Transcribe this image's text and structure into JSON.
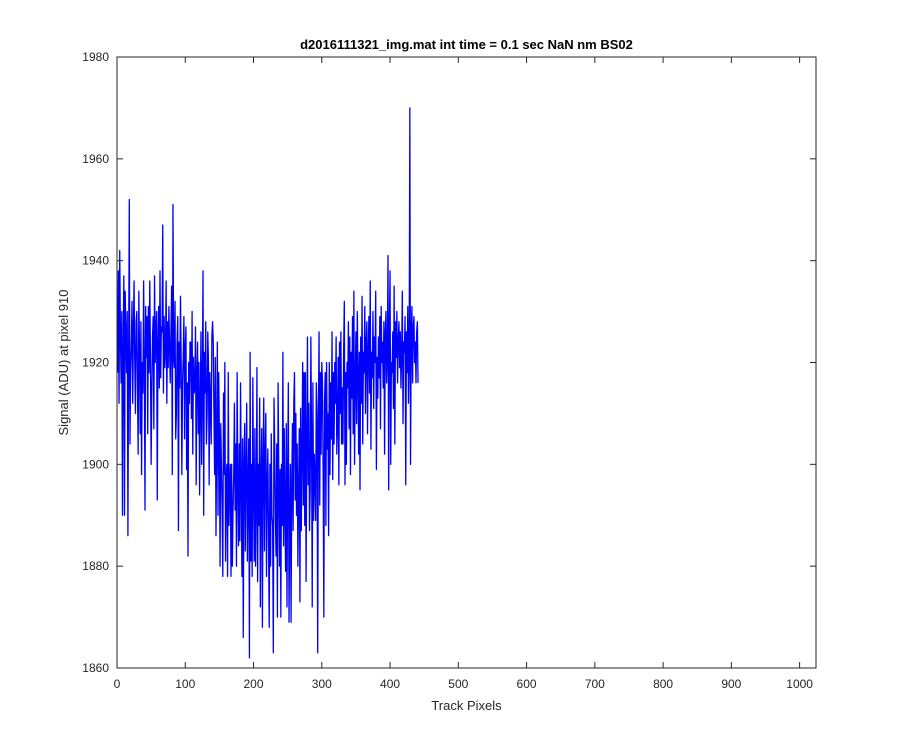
{
  "chart_data": {
    "type": "line",
    "title": "d2016111321_img.mat int time = 0.1 sec  NaN nm BS02",
    "xlabel": "Track Pixels",
    "ylabel": "Signal (ADU) at pixel 910",
    "xlim": [
      0,
      1024
    ],
    "ylim": [
      1860,
      1980
    ],
    "x_ticks": [
      "0",
      "100",
      "200",
      "300",
      "400",
      "500",
      "600",
      "700",
      "800",
      "900",
      "1000"
    ],
    "y_ticks": [
      "1860",
      "1880",
      "1900",
      "1920",
      "1940",
      "1960",
      "1980"
    ],
    "grid": false,
    "box": true,
    "line_color": "#0000ff",
    "axis_color": "#262626",
    "series": [
      {
        "x_start": 1,
        "x_step": 1,
        "values": [
          1918,
          1938,
          1912,
          1942,
          1926,
          1916,
          1930,
          1890,
          1922,
          1937,
          1890,
          1934,
          1926,
          1918,
          1930,
          1886,
          1920,
          1952,
          1904,
          1918,
          1924,
          1932,
          1912,
          1926,
          1936,
          1920,
          1910,
          1928,
          1930,
          1915,
          1902,
          1934,
          1922,
          1906,
          1928,
          1898,
          1920,
          1914,
          1936,
          1920,
          1891,
          1931,
          1921,
          1929,
          1906,
          1931,
          1918,
          1936,
          1921,
          1900,
          1914,
          1925,
          1929,
          1907,
          1937,
          1920,
          1926,
          1930,
          1893,
          1924,
          1931,
          1915,
          1938,
          1917,
          1927,
          1926,
          1947,
          1914,
          1929,
          1919,
          1922,
          1936,
          1912,
          1928,
          1919,
          1931,
          1923,
          1916,
          1926,
          1935,
          1898,
          1951,
          1921,
          1919,
          1932,
          1905,
          1910,
          1924,
          1929,
          1887,
          1924,
          1915,
          1933,
          1920,
          1898,
          1916,
          1921,
          1929,
          1905,
          1923,
          1927,
          1899,
          1916,
          1882,
          1920,
          1912,
          1924,
          1924,
          1909,
          1930,
          1902,
          1921,
          1914,
          1915,
          1927,
          1896,
          1918,
          1924,
          1906,
          1920,
          1894,
          1912,
          1926,
          1900,
          1916,
          1938,
          1890,
          1922,
          1914,
          1928,
          1904,
          1910,
          1926,
          1920,
          1896,
          1918,
          1912,
          1904,
          1925,
          1928,
          1924,
          1910,
          1898,
          1921,
          1886,
          1905,
          1924,
          1890,
          1918,
          1906,
          1880,
          1908,
          1900,
          1891,
          1878,
          1914,
          1898,
          1920,
          1881,
          1897,
          1900,
          1878,
          1918,
          1888,
          1896,
          1900,
          1878,
          1900,
          1880,
          1891,
          1898,
          1912,
          1891,
          1904,
          1880,
          1918,
          1896,
          1884,
          1904,
          1885,
          1916,
          1896,
          1878,
          1905,
          1866,
          1900,
          1908,
          1883,
          1899,
          1912,
          1881,
          1896,
          1905,
          1862,
          1922,
          1881,
          1900,
          1878,
          1917,
          1895,
          1881,
          1907,
          1880,
          1892,
          1919,
          1877,
          1900,
          1888,
          1913,
          1872,
          1897,
          1907,
          1868,
          1901,
          1913,
          1883,
          1902,
          1910,
          1878,
          1896,
          1903,
          1885,
          1868,
          1900,
          1880,
          1906,
          1890,
          1888,
          1863,
          1913,
          1904,
          1890,
          1882,
          1904,
          1870,
          1916,
          1898,
          1880,
          1899,
          1870,
          1900,
          1888,
          1922,
          1884,
          1907,
          1890,
          1879,
          1908,
          1872,
          1898,
          1916,
          1869,
          1890,
          1900,
          1869,
          1896,
          1908,
          1887,
          1912,
          1918,
          1893,
          1910,
          1890,
          1904,
          1880,
          1895,
          1907,
          1873,
          1911,
          1887,
          1902,
          1920,
          1892,
          1918,
          1888,
          1918,
          1877,
          1904,
          1925,
          1896,
          1912,
          1887,
          1895,
          1925,
          1905,
          1872,
          1916,
          1889,
          1902,
          1897,
          1889,
          1916,
          1910,
          1863,
          1908,
          1926,
          1892,
          1918,
          1902,
          1920,
          1916,
          1898,
          1870,
          1912,
          1918,
          1888,
          1920,
          1903,
          1910,
          1886,
          1920,
          1898,
          1916,
          1905,
          1926,
          1897,
          1918,
          1904,
          1920,
          1912,
          1925,
          1902,
          1908,
          1921,
          1896,
          1924,
          1910,
          1926,
          1904,
          1915,
          1904,
          1922,
          1932,
          1896,
          1918,
          1900,
          1920,
          1915,
          1928,
          1907,
          1925,
          1898,
          1922,
          1913,
          1929,
          1906,
          1934,
          1900,
          1916,
          1926,
          1908,
          1930,
          1918,
          1902,
          1922,
          1895,
          1925,
          1912,
          1933,
          1904,
          1922,
          1918,
          1931,
          1910,
          1924,
          1928,
          1906,
          1922,
          1929,
          1914,
          1936,
          1903,
          1922,
          1917,
          1930,
          1911,
          1925,
          1920,
          1934,
          1899,
          1921,
          1913,
          1925,
          1917,
          1929,
          1907,
          1931,
          1920,
          1924,
          1915,
          1928,
          1902,
          1926,
          1930,
          1916,
          1922,
          1941,
          1895,
          1926,
          1938,
          1900,
          1920,
          1918,
          1926,
          1911,
          1935,
          1904,
          1928,
          1921,
          1930,
          1916,
          1924,
          1928,
          1919,
          1926,
          1915,
          1922,
          1934,
          1908,
          1924,
          1922,
          1929,
          1896,
          1926,
          1918,
          1931,
          1912,
          1920,
          1970,
          1900,
          1925,
          1931,
          1916,
          1927,
          1929,
          1920,
          1924,
          1916,
          1926,
          1928,
          1916
        ]
      }
    ]
  }
}
